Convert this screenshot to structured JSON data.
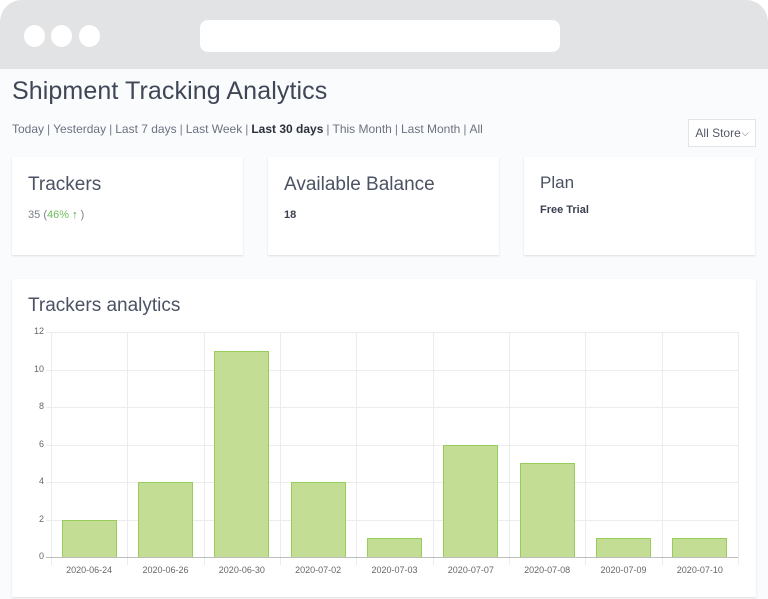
{
  "browser": {
    "address": ""
  },
  "header": {
    "title": "Shipment Tracking Analytics"
  },
  "date_filters": {
    "options": [
      "Today",
      "Yesterday",
      "Last 7 days",
      "Last Week",
      "Last 30 days",
      "This Month",
      "Last Month",
      "All"
    ],
    "active": "Last 30 days",
    "separator": "|"
  },
  "store_select": {
    "selected": "All Store",
    "icon": "chevron-down-icon"
  },
  "cards": {
    "trackers": {
      "title": "Trackers",
      "value": "35",
      "change": "46%",
      "change_icon": "arrow-up-icon",
      "change_color": "#6ebf5a"
    },
    "balance": {
      "title": "Available Balance",
      "value": "18"
    },
    "plan": {
      "title": "Plan",
      "value": "Free Trial"
    }
  },
  "chart_card": {
    "title": "Trackers analytics"
  },
  "chart_data": {
    "type": "bar",
    "title": "Trackers analytics",
    "xlabel": "",
    "ylabel": "",
    "categories": [
      "2020-06-24",
      "2020-06-26",
      "2020-06-30",
      "2020-07-02",
      "2020-07-03",
      "2020-07-07",
      "2020-07-08",
      "2020-07-09",
      "2020-07-10"
    ],
    "values": [
      2,
      4,
      11,
      4,
      1,
      6,
      5,
      1,
      1
    ],
    "ylim": [
      0,
      12
    ],
    "yticks": [
      0,
      2,
      4,
      6,
      8,
      10,
      12
    ],
    "grid": true,
    "legend": false,
    "bar_color": "#c3dd94",
    "bar_border_color": "#97cd5c"
  }
}
